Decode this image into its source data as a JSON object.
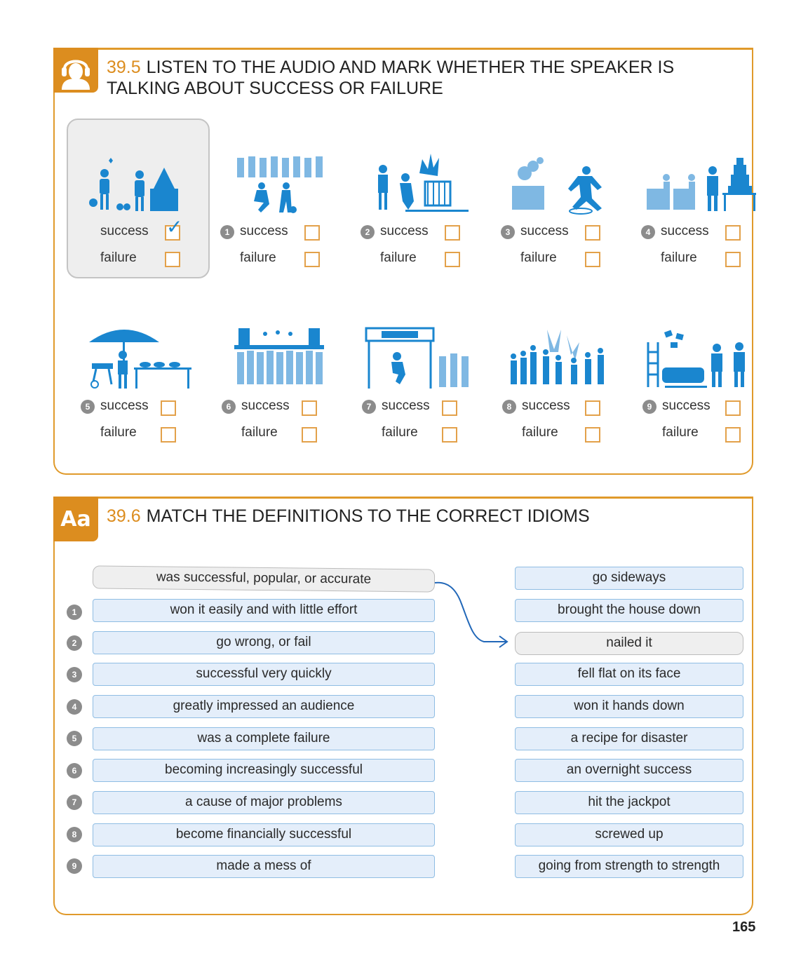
{
  "section1": {
    "number": "39.5",
    "title": "LISTEN TO THE AUDIO AND MARK WHETHER THE SPEAKER IS TALKING ABOUT SUCCESS OR FAILURE",
    "tab_icon": "headphones-person-icon",
    "accent_color": "#dc8d1f",
    "icon_color": "#1a86cf",
    "example": {
      "success": "success",
      "failure": "failure",
      "checked": "success",
      "check_mark": "✓"
    },
    "items": [
      {
        "num": "1",
        "success": "success",
        "failure": "failure"
      },
      {
        "num": "2",
        "success": "success",
        "failure": "failure"
      },
      {
        "num": "3",
        "success": "success",
        "failure": "failure"
      },
      {
        "num": "4",
        "success": "success",
        "failure": "failure"
      },
      {
        "num": "5",
        "success": "success",
        "failure": "failure"
      },
      {
        "num": "6",
        "success": "success",
        "failure": "failure"
      },
      {
        "num": "7",
        "success": "success",
        "failure": "failure"
      },
      {
        "num": "8",
        "success": "success",
        "failure": "failure"
      },
      {
        "num": "9",
        "success": "success",
        "failure": "failure"
      }
    ]
  },
  "section2": {
    "number": "39.6",
    "title": "MATCH THE DEFINITIONS TO THE CORRECT IDIOMS",
    "tab_label": "Aa",
    "example_definition": "was successful, popular, or accurate",
    "definitions": [
      {
        "num": "1",
        "text": "won it easily and with little effort"
      },
      {
        "num": "2",
        "text": "go wrong, or fail"
      },
      {
        "num": "3",
        "text": "successful very quickly"
      },
      {
        "num": "4",
        "text": "greatly impressed an audience"
      },
      {
        "num": "5",
        "text": "was a complete failure"
      },
      {
        "num": "6",
        "text": "becoming increasingly successful"
      },
      {
        "num": "7",
        "text": "a cause of major problems"
      },
      {
        "num": "8",
        "text": "become financially successful"
      },
      {
        "num": "9",
        "text": "made a mess of"
      }
    ],
    "idioms": [
      "go sideways",
      "brought the house down",
      "nailed it",
      "fell flat on its face",
      "won it hands down",
      "a recipe for disaster",
      "an overnight success",
      "hit the jackpot",
      "screwed up",
      "going from strength to strength"
    ],
    "example_idiom_index": 2
  },
  "page_number": "165"
}
